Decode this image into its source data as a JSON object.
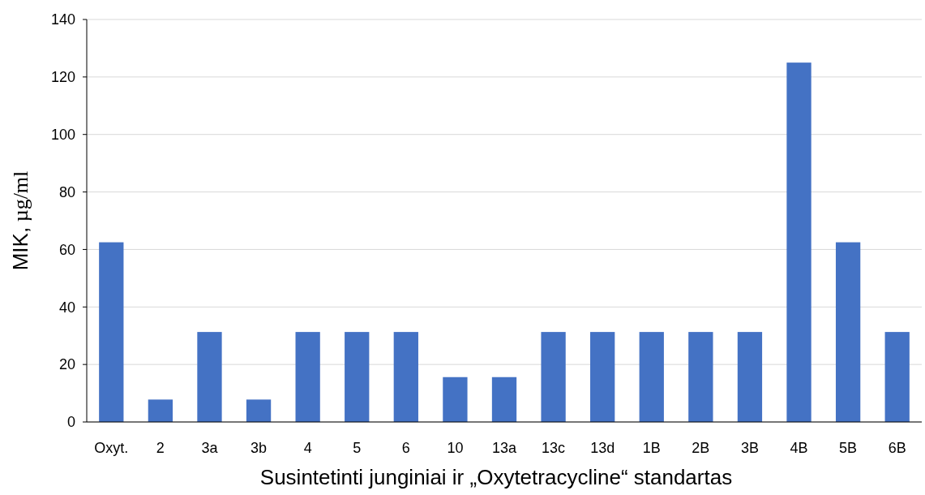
{
  "chart_data": {
    "type": "bar",
    "xlabel": "Susintetinti junginiai ir „Oxytetracycline“ standartas",
    "ylabel": "MIK, µg/ml",
    "categories": [
      "Oxyt.",
      "2",
      "3a",
      "3b",
      "4",
      "5",
      "6",
      "10",
      "13a",
      "13c",
      "13d",
      "1B",
      "2B",
      "3B",
      "4B",
      "5B",
      "6B"
    ],
    "values": [
      62.5,
      7.8,
      31.3,
      7.8,
      31.3,
      31.3,
      31.3,
      15.6,
      15.6,
      31.3,
      31.3,
      31.3,
      31.3,
      31.3,
      125,
      62.5,
      31.3
    ],
    "color": "#4472c4",
    "ylim": [
      0,
      140
    ],
    "yticks": [
      0,
      20,
      40,
      60,
      80,
      100,
      120,
      140
    ],
    "grid": "y"
  }
}
